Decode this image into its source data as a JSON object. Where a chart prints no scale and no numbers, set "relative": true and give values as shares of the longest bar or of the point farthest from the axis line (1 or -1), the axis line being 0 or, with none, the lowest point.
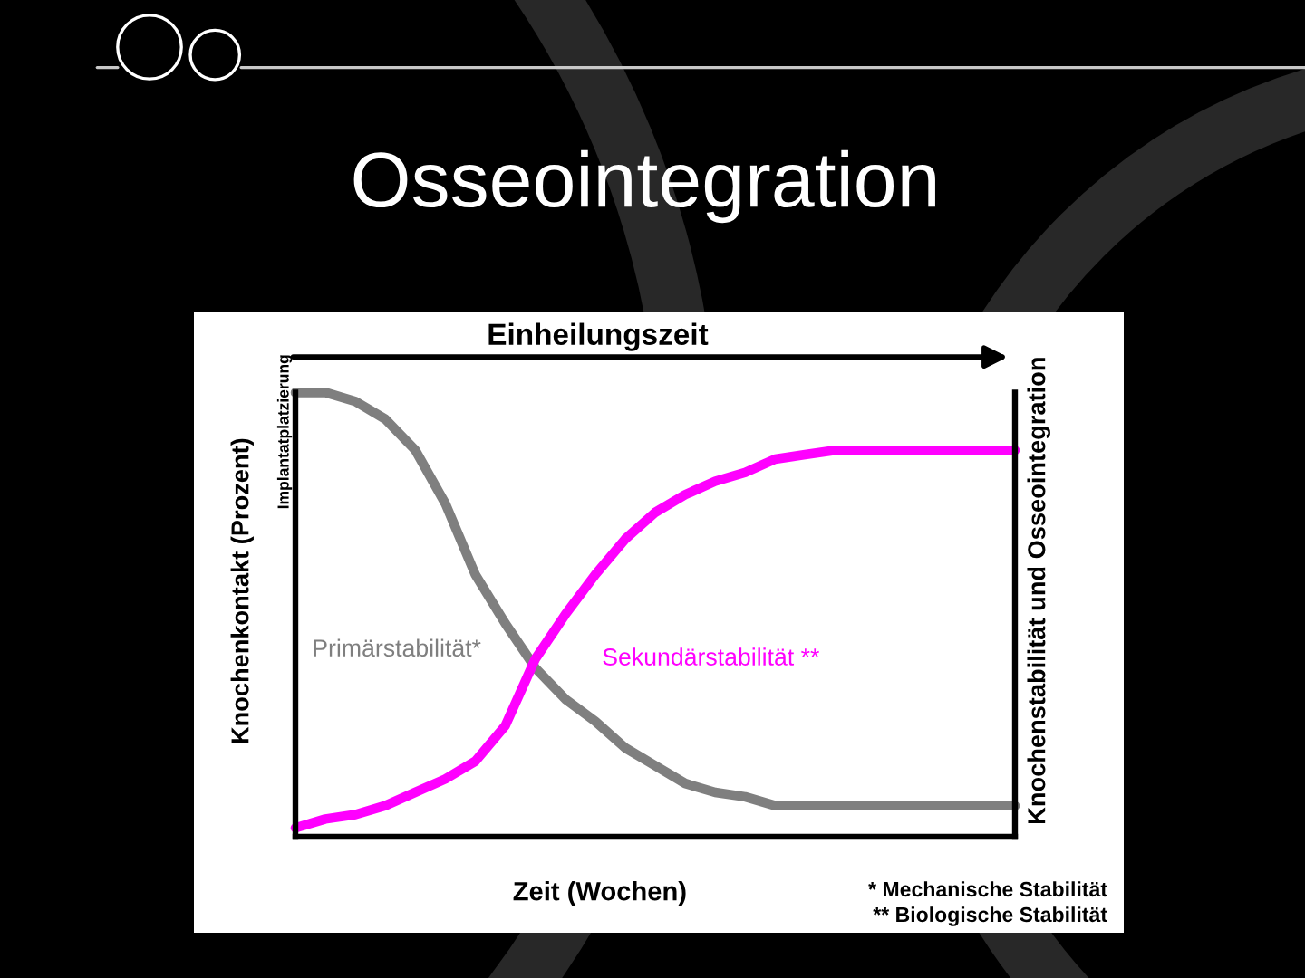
{
  "chart_data": {
    "type": "line",
    "title": "Osseointegration",
    "xlabel": "Zeit (Wochen)",
    "ylabel": "Knochenkontakt (Prozent)",
    "y2label": "Knochenstabilität und Osseointegration",
    "relative": true,
    "line_style": "solid",
    "categories": [
      null,
      null,
      null,
      null,
      null,
      null,
      null,
      null,
      null,
      null,
      null,
      null,
      null,
      null,
      null,
      null,
      null,
      null,
      null,
      null,
      null,
      null,
      null,
      null,
      null
    ],
    "series": [
      {
        "name": "Primärstabilität*",
        "color": "#7f7f7f",
        "values": [
          1.0,
          1.0,
          0.98,
          0.94,
          0.87,
          0.75,
          0.59,
          0.48,
          0.38,
          0.31,
          0.26,
          0.2,
          0.16,
          0.12,
          0.1,
          0.09,
          0.07,
          0.07,
          0.07,
          0.07,
          0.07,
          0.07,
          0.07,
          0.07,
          0.07
        ]
      },
      {
        "name": "Sekundärstabilität **",
        "color": "#ff00ff",
        "values": [
          0.02,
          0.04,
          0.05,
          0.07,
          0.1,
          0.13,
          0.17,
          0.25,
          0.4,
          0.5,
          0.59,
          0.67,
          0.73,
          0.77,
          0.8,
          0.82,
          0.85,
          0.86,
          0.87,
          0.87,
          0.87,
          0.87,
          0.87,
          0.87,
          0.87
        ]
      }
    ],
    "annotations": [
      "Einheilungszeit",
      "Implantatplatzierung",
      "* Mechanische Stabilität",
      "** Biologische Stabilität"
    ]
  }
}
